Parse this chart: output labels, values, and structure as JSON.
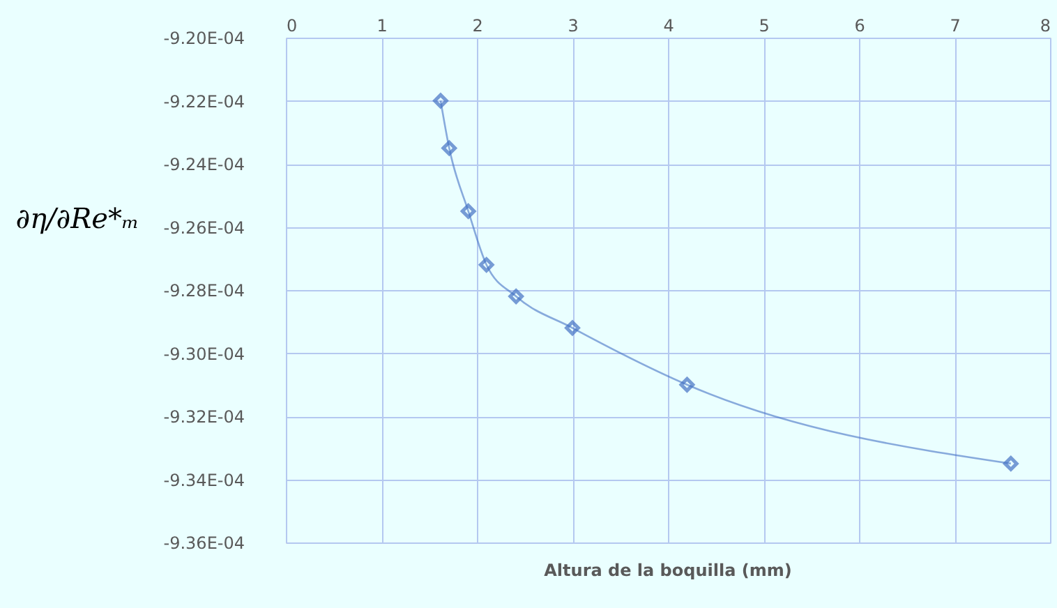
{
  "chart_data": {
    "type": "line",
    "xlabel": "Altura de la boquilla (mm)",
    "ylabel": "∂η/∂Re*ₘ",
    "x": [
      1.62,
      1.71,
      1.91,
      2.1,
      2.41,
      3.0,
      4.2,
      7.59
    ],
    "series": [
      {
        "color": "#4472c4",
        "values": [
          -0.000922,
          -0.0009235,
          -0.0009255,
          -0.0009272,
          -0.0009282,
          -0.0009292,
          -0.000931,
          -0.0009335
        ]
      }
    ],
    "xlim": [
      0,
      8
    ],
    "xticks": [
      0,
      1,
      2,
      3,
      4,
      5,
      6,
      7,
      8
    ],
    "ylim": [
      -0.000936,
      -0.00092
    ],
    "yticks": [
      {
        "value": -0.00092,
        "label": "-9.20E-04"
      },
      {
        "value": -0.000922,
        "label": "-9.22E-04"
      },
      {
        "value": -0.000924,
        "label": "-9.24E-04"
      },
      {
        "value": -0.000926,
        "label": "-9.26E-04"
      },
      {
        "value": -0.000928,
        "label": "-9.28E-04"
      },
      {
        "value": -0.00093,
        "label": "-9.30E-04"
      },
      {
        "value": -0.000932,
        "label": "-9.32E-04"
      },
      {
        "value": -0.000934,
        "label": "-9.34E-04"
      },
      {
        "value": -0.000936,
        "label": "-9.36E-04"
      }
    ],
    "grid": true,
    "marker": "diamond",
    "line_style": "solid"
  }
}
